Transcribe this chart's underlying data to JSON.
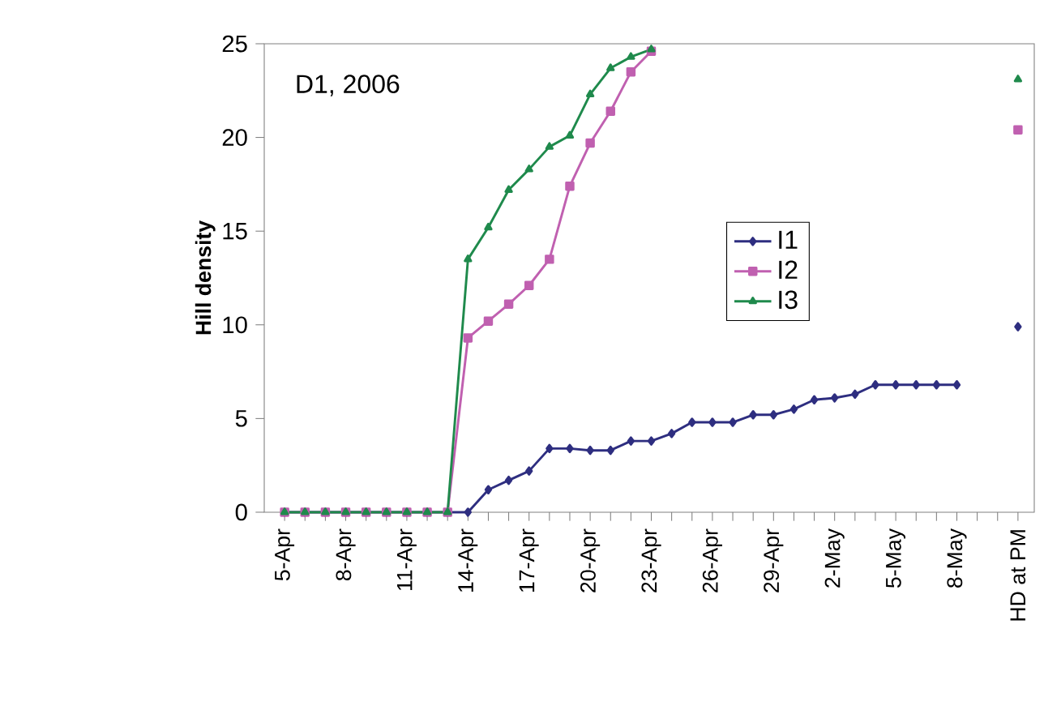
{
  "chart_data": {
    "type": "line",
    "ylabel": "Hill density",
    "categories": [
      "5-Apr",
      null,
      null,
      "8-Apr",
      null,
      null,
      "11-Apr",
      null,
      null,
      "14-Apr",
      null,
      null,
      "17-Apr",
      null,
      null,
      "20-Apr",
      null,
      null,
      "23-Apr",
      null,
      null,
      "26-Apr",
      null,
      null,
      "29-Apr",
      null,
      null,
      "2-May",
      null,
      null,
      "5-May",
      null,
      null,
      "8-May",
      null,
      null,
      "HD at PM"
    ],
    "series": [
      {
        "name": "I1",
        "color": "#2e2e80",
        "marker": "diamond",
        "values": [
          0,
          0,
          0,
          0,
          0,
          0,
          0,
          0,
          0,
          0,
          1.2,
          1.7,
          2.2,
          3.4,
          3.4,
          3.3,
          3.3,
          3.8,
          3.8,
          4.2,
          4.8,
          4.8,
          4.8,
          5.2,
          5.2,
          5.5,
          6.0,
          6.1,
          6.3,
          6.8,
          6.8,
          6.8,
          6.8,
          6.8,
          null,
          null,
          9.9
        ]
      },
      {
        "name": "I2",
        "color": "#c060b0",
        "marker": "square",
        "values": [
          0,
          0,
          0,
          0,
          0,
          0,
          0,
          0,
          0,
          9.3,
          10.2,
          11.1,
          12.1,
          13.5,
          17.4,
          19.7,
          21.4,
          23.5,
          24.6,
          null,
          null,
          null,
          null,
          null,
          null,
          null,
          null,
          null,
          null,
          null,
          null,
          null,
          null,
          null,
          null,
          null,
          20.4
        ]
      },
      {
        "name": "I3",
        "color": "#1f8a4c",
        "marker": "triangle",
        "values": [
          0,
          0,
          0,
          0,
          0,
          0,
          0,
          0,
          0,
          13.5,
          15.2,
          17.2,
          18.3,
          19.5,
          20.1,
          22.3,
          23.7,
          24.3,
          24.7,
          null,
          null,
          null,
          null,
          null,
          null,
          null,
          null,
          null,
          null,
          null,
          null,
          null,
          null,
          null,
          null,
          null,
          23.1
        ]
      }
    ],
    "ylim": [
      0,
      25
    ],
    "yticks": [
      0,
      5,
      10,
      15,
      20,
      25
    ],
    "annotations": [
      "D1, 2006"
    ],
    "legend": "right",
    "grid": false
  }
}
